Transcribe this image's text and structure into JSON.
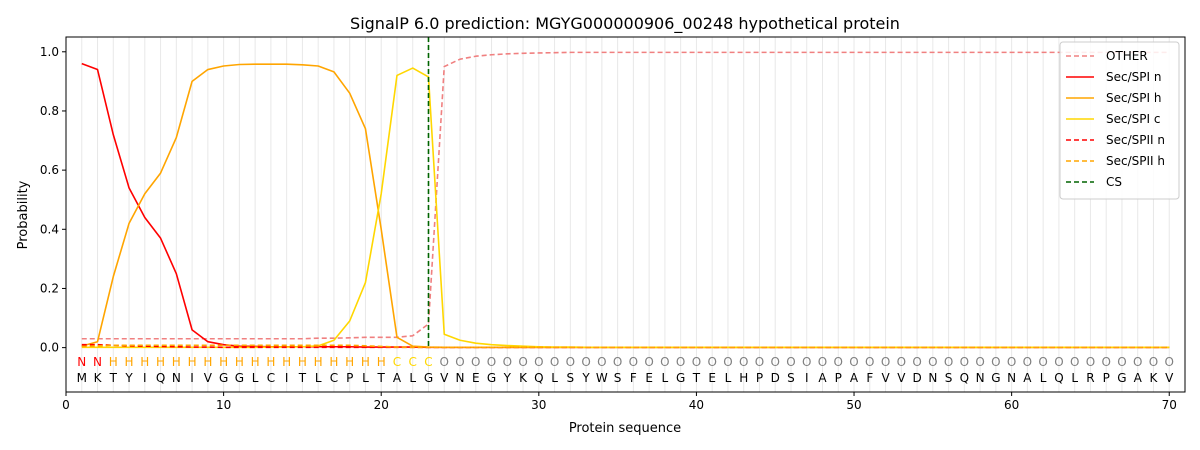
{
  "chart_data": {
    "type": "line",
    "title": "SignalP 6.0 prediction: MGYG000000906_00248 hypothetical protein",
    "xlabel": "Protein sequence",
    "ylabel": "Probability",
    "xlim": [
      0,
      71
    ],
    "ylim": [
      -0.15,
      1.05
    ],
    "xticks": [
      0,
      10,
      20,
      30,
      40,
      50,
      60,
      70
    ],
    "yticks": [
      0.0,
      0.2,
      0.4,
      0.6,
      0.8,
      1.0
    ],
    "grid": "vertical lines at each residue",
    "legend_position": "top-right",
    "sequence": [
      "M",
      "K",
      "T",
      "Y",
      "I",
      "Q",
      "N",
      "I",
      "V",
      "G",
      "G",
      "L",
      "C",
      "I",
      "T",
      "L",
      "C",
      "P",
      "L",
      "T",
      "A",
      "L",
      "G",
      "V",
      "N",
      "E",
      "G",
      "Y",
      "K",
      "Q",
      "L",
      "S",
      "Y",
      "W",
      "S",
      "F",
      "E",
      "L",
      "G",
      "T",
      "E",
      "L",
      "H",
      "P",
      "D",
      "S",
      "I",
      "A",
      "P",
      "A",
      "F",
      "V",
      "V",
      "D",
      "N",
      "S",
      "Q",
      "N",
      "G",
      "N",
      "A",
      "L",
      "Q",
      "L",
      "R",
      "P",
      "G",
      "A",
      "K",
      "V"
    ],
    "region_labels": [
      "N",
      "N",
      "H",
      "H",
      "H",
      "H",
      "H",
      "H",
      "H",
      "H",
      "H",
      "H",
      "H",
      "H",
      "H",
      "H",
      "H",
      "H",
      "H",
      "H",
      "C",
      "C",
      "C",
      "O",
      "O",
      "O",
      "O",
      "O",
      "O",
      "O",
      "O",
      "O",
      "O",
      "O",
      "O",
      "O",
      "O",
      "O",
      "O",
      "O",
      "O",
      "O",
      "O",
      "O",
      "O",
      "O",
      "O",
      "O",
      "O",
      "O",
      "O",
      "O",
      "O",
      "O",
      "O",
      "O",
      "O",
      "O",
      "O",
      "O",
      "O",
      "O",
      "O",
      "O",
      "O",
      "O",
      "O",
      "O",
      "O",
      "O"
    ],
    "region_colors": {
      "N": "#ff0000",
      "H": "#ffa500",
      "C": "#ffd700",
      "O": "#808080"
    },
    "series": [
      {
        "name": "OTHER",
        "color": "#f08080",
        "dash": true,
        "values": [
          0.03,
          0.03,
          0.03,
          0.03,
          0.03,
          0.03,
          0.03,
          0.03,
          0.03,
          0.03,
          0.03,
          0.03,
          0.03,
          0.03,
          0.03,
          0.032,
          0.032,
          0.033,
          0.035,
          0.035,
          0.035,
          0.04,
          0.08,
          0.95,
          0.975,
          0.985,
          0.99,
          0.993,
          0.995,
          0.996,
          0.997,
          0.998,
          0.998,
          0.998,
          0.998,
          0.998,
          0.998,
          0.998,
          0.998,
          0.998,
          0.998,
          0.998,
          0.998,
          0.998,
          0.998,
          0.998,
          0.998,
          0.998,
          0.998,
          0.998,
          0.998,
          0.998,
          0.998,
          0.998,
          0.998,
          0.998,
          0.998,
          0.998,
          0.998,
          0.998,
          0.998,
          0.998,
          0.998,
          0.998,
          0.998,
          0.998,
          0.998,
          0.998,
          0.998,
          0.998
        ]
      },
      {
        "name": "Sec/SPI n",
        "color": "#ff0000",
        "dash": false,
        "values": [
          0.96,
          0.94,
          0.72,
          0.54,
          0.44,
          0.37,
          0.25,
          0.06,
          0.02,
          0.01,
          0.005,
          0.004,
          0.003,
          0.003,
          0.003,
          0.003,
          0.003,
          0.003,
          0.002,
          0.002,
          0.002,
          0.002,
          0.001,
          0.001,
          0.001,
          0.001,
          0.001,
          0.001,
          0.001,
          0.001,
          0.001,
          0.001,
          0.001,
          0.001,
          0.001,
          0.001,
          0.001,
          0.001,
          0.001,
          0.001,
          0.001,
          0.001,
          0.001,
          0.001,
          0.001,
          0.001,
          0.001,
          0.001,
          0.001,
          0.001,
          0.001,
          0.001,
          0.001,
          0.001,
          0.001,
          0.001,
          0.001,
          0.001,
          0.001,
          0.001,
          0.001,
          0.001,
          0.001,
          0.001,
          0.001,
          0.001,
          0.001,
          0.001,
          0.001,
          0.001
        ]
      },
      {
        "name": "Sec/SPI h",
        "color": "#ffa500",
        "dash": false,
        "values": [
          0.005,
          0.02,
          0.24,
          0.42,
          0.52,
          0.59,
          0.71,
          0.9,
          0.94,
          0.952,
          0.957,
          0.958,
          0.958,
          0.958,
          0.956,
          0.952,
          0.932,
          0.86,
          0.74,
          0.4,
          0.035,
          0.005,
          0.002,
          0.001,
          0.001,
          0.001,
          0.001,
          0.001,
          0.001,
          0.001,
          0.001,
          0.001,
          0.001,
          0.001,
          0.001,
          0.001,
          0.001,
          0.001,
          0.001,
          0.001,
          0.001,
          0.001,
          0.001,
          0.001,
          0.001,
          0.001,
          0.001,
          0.001,
          0.001,
          0.001,
          0.001,
          0.001,
          0.001,
          0.001,
          0.001,
          0.001,
          0.001,
          0.001,
          0.001,
          0.001,
          0.001,
          0.001,
          0.001,
          0.001,
          0.001,
          0.001,
          0.001,
          0.001,
          0.001,
          0.001
        ]
      },
      {
        "name": "Sec/SPI c",
        "color": "#ffd700",
        "dash": false,
        "values": [
          0.001,
          0.001,
          0.001,
          0.001,
          0.001,
          0.001,
          0.001,
          0.001,
          0.001,
          0.001,
          0.001,
          0.001,
          0.002,
          0.002,
          0.003,
          0.006,
          0.025,
          0.09,
          0.22,
          0.52,
          0.92,
          0.945,
          0.915,
          0.045,
          0.025,
          0.015,
          0.01,
          0.007,
          0.005,
          0.003,
          0.002,
          0.002,
          0.001,
          0.001,
          0.001,
          0.001,
          0.001,
          0.001,
          0.001,
          0.001,
          0.001,
          0.001,
          0.001,
          0.001,
          0.001,
          0.001,
          0.001,
          0.001,
          0.001,
          0.001,
          0.001,
          0.001,
          0.001,
          0.001,
          0.001,
          0.001,
          0.001,
          0.001,
          0.001,
          0.001,
          0.001,
          0.001,
          0.001,
          0.001,
          0.001,
          0.001,
          0.001,
          0.001,
          0.001,
          0.001
        ]
      },
      {
        "name": "Sec/SPII n",
        "color": "#ff0000",
        "dash": true,
        "values": [
          0.01,
          0.01,
          0.008,
          0.006,
          0.005,
          0.004,
          0.003,
          0.002,
          0.002,
          0.001,
          0.001,
          0.001,
          0.001,
          0.001,
          0.001,
          0.001,
          0.001,
          0.001,
          0.001,
          0.001,
          0.001,
          0.001,
          0.001,
          0.001,
          0.001,
          0.001,
          0.001,
          0.001,
          0.001,
          0.001,
          0.001,
          0.001,
          0.001,
          0.001,
          0.001,
          0.001,
          0.001,
          0.001,
          0.001,
          0.001,
          0.001,
          0.001,
          0.001,
          0.001,
          0.001,
          0.001,
          0.001,
          0.001,
          0.001,
          0.001,
          0.001,
          0.001,
          0.001,
          0.001,
          0.001,
          0.001,
          0.001,
          0.001,
          0.001,
          0.001,
          0.001,
          0.001,
          0.001,
          0.001,
          0.001,
          0.001,
          0.001,
          0.001,
          0.001,
          0.001
        ]
      },
      {
        "name": "Sec/SPII h",
        "color": "#ffa500",
        "dash": true,
        "values": [
          0.004,
          0.006,
          0.008,
          0.008,
          0.008,
          0.008,
          0.008,
          0.008,
          0.008,
          0.008,
          0.008,
          0.008,
          0.008,
          0.008,
          0.008,
          0.008,
          0.008,
          0.008,
          0.006,
          0.004,
          0.002,
          0.001,
          0.001,
          0.001,
          0.001,
          0.001,
          0.001,
          0.001,
          0.001,
          0.001,
          0.001,
          0.001,
          0.001,
          0.001,
          0.001,
          0.001,
          0.001,
          0.001,
          0.001,
          0.001,
          0.001,
          0.001,
          0.001,
          0.001,
          0.001,
          0.001,
          0.001,
          0.001,
          0.001,
          0.001,
          0.001,
          0.001,
          0.001,
          0.001,
          0.001,
          0.001,
          0.001,
          0.001,
          0.001,
          0.001,
          0.001,
          0.001,
          0.001,
          0.001,
          0.001,
          0.001,
          0.001,
          0.001,
          0.001,
          0.001
        ]
      },
      {
        "name": "CS",
        "color": "#006400",
        "dash": true,
        "vline": 23
      }
    ]
  }
}
